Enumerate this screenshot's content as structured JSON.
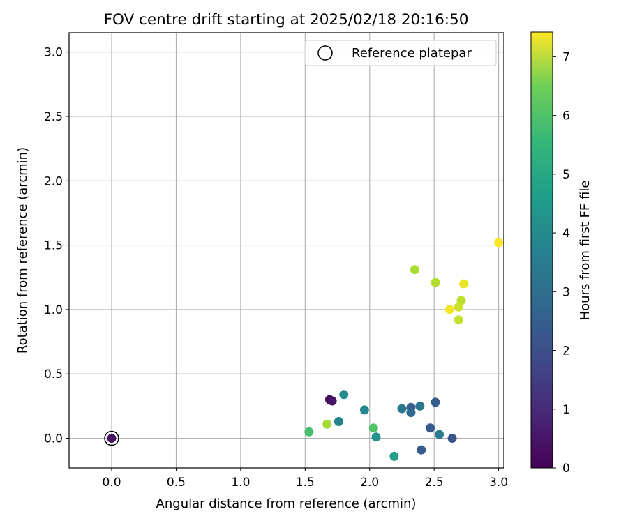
{
  "chart_data": {
    "type": "scatter",
    "title": "FOV centre drift starting at 2025/02/18 20:16:50",
    "xlabel": "Angular distance from reference (arcmin)",
    "ylabel": "Rotation from reference (arcmin)",
    "xlim": [
      -0.33,
      3.04
    ],
    "ylim": [
      -0.23,
      3.15
    ],
    "xticks": [
      0.0,
      0.5,
      1.0,
      1.5,
      2.0,
      2.5,
      3.0
    ],
    "xtick_labels": [
      "0.0",
      "0.5",
      "1.0",
      "1.5",
      "2.0",
      "2.5",
      "3.0"
    ],
    "yticks": [
      0.0,
      0.5,
      1.0,
      1.5,
      2.0,
      2.5,
      3.0
    ],
    "ytick_labels": [
      "0.0",
      "0.5",
      "1.0",
      "1.5",
      "2.0",
      "2.5",
      "3.0"
    ],
    "grid": true,
    "legend": {
      "placement": "top-right",
      "entries": [
        "Reference platepar"
      ]
    },
    "colorbar": {
      "label": "Hours from first FF file",
      "colormap": "viridis",
      "range": [
        0,
        7.42
      ],
      "ticks": [
        0,
        1,
        2,
        3,
        4,
        5,
        6,
        7
      ],
      "tick_labels": [
        "0",
        "1",
        "2",
        "3",
        "4",
        "5",
        "6",
        "7"
      ]
    },
    "reference": {
      "x": 0.0,
      "y": 0.0
    },
    "points": [
      {
        "x": 0.0,
        "y": 0.0,
        "hours": 0.4
      },
      {
        "x": 1.69,
        "y": 0.3,
        "hours": 0.2
      },
      {
        "x": 1.71,
        "y": 0.29,
        "hours": 0.4
      },
      {
        "x": 1.8,
        "y": 0.34,
        "hours": 3.6
      },
      {
        "x": 1.76,
        "y": 0.13,
        "hours": 3.3
      },
      {
        "x": 1.96,
        "y": 0.22,
        "hours": 3.4
      },
      {
        "x": 2.25,
        "y": 0.23,
        "hours": 3.0
      },
      {
        "x": 2.32,
        "y": 0.24,
        "hours": 2.3
      },
      {
        "x": 2.32,
        "y": 0.2,
        "hours": 2.6
      },
      {
        "x": 2.39,
        "y": 0.25,
        "hours": 2.9
      },
      {
        "x": 2.51,
        "y": 0.28,
        "hours": 2.2
      },
      {
        "x": 2.47,
        "y": 0.08,
        "hours": 2.1
      },
      {
        "x": 2.54,
        "y": 0.03,
        "hours": 3.1
      },
      {
        "x": 2.64,
        "y": 0.0,
        "hours": 2.0
      },
      {
        "x": 2.4,
        "y": -0.09,
        "hours": 2.2
      },
      {
        "x": 2.19,
        "y": -0.14,
        "hours": 4.2
      },
      {
        "x": 2.05,
        "y": 0.01,
        "hours": 3.8
      },
      {
        "x": 2.03,
        "y": 0.08,
        "hours": 5.4
      },
      {
        "x": 1.53,
        "y": 0.05,
        "hours": 5.2
      },
      {
        "x": 1.67,
        "y": 0.11,
        "hours": 6.4
      },
      {
        "x": 2.35,
        "y": 1.31,
        "hours": 6.5
      },
      {
        "x": 2.51,
        "y": 1.21,
        "hours": 6.6
      },
      {
        "x": 2.73,
        "y": 1.2,
        "hours": 7.2
      },
      {
        "x": 2.71,
        "y": 1.07,
        "hours": 6.7
      },
      {
        "x": 2.69,
        "y": 1.02,
        "hours": 6.9
      },
      {
        "x": 2.62,
        "y": 1.0,
        "hours": 7.3
      },
      {
        "x": 2.69,
        "y": 0.92,
        "hours": 6.8
      },
      {
        "x": 3.0,
        "y": 1.52,
        "hours": 7.4
      }
    ]
  }
}
